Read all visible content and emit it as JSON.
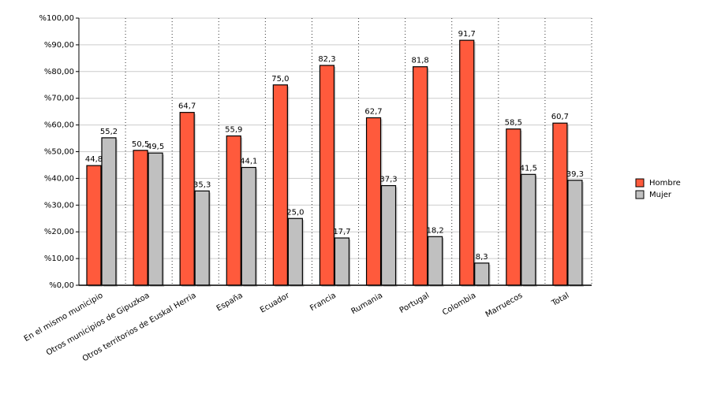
{
  "chart_data": {
    "type": "bar",
    "categories": [
      "En el mismo municipio",
      "Otros municipios de Gipuzkoa",
      "Otros territorios de Euskal Herria",
      "España",
      "Ecuador",
      "Francia",
      "Rumania",
      "Portugal",
      "Colombia",
      "Marruecos",
      "Total"
    ],
    "series": [
      {
        "name": "Hombre",
        "color": "#ff5a3c",
        "values": [
          44.8,
          50.5,
          64.7,
          55.9,
          75.0,
          82.3,
          62.7,
          81.8,
          91.7,
          58.5,
          60.7
        ],
        "value_labels": [
          "44,8",
          "50,5",
          "64,7",
          "55,9",
          "75,0",
          "82,3",
          "62,7",
          "81,8",
          "91,7",
          "58,5",
          "60,7"
        ]
      },
      {
        "name": "Mujer",
        "color": "#c0c0c0",
        "values": [
          55.2,
          49.5,
          35.3,
          44.1,
          25.0,
          17.7,
          37.3,
          18.2,
          8.3,
          41.5,
          39.3
        ],
        "value_labels": [
          "55,2",
          "49,5",
          "35,3",
          "44,1",
          "25,0",
          "17,7",
          "37,3",
          "18,2",
          "8,3",
          "41,5",
          "39,3"
        ]
      }
    ],
    "ylim": [
      0,
      100
    ],
    "yticks": [
      {
        "value": 0,
        "label": "%0,00"
      },
      {
        "value": 10,
        "label": "%10,00"
      },
      {
        "value": 20,
        "label": "%20,00"
      },
      {
        "value": 30,
        "label": "%30,00"
      },
      {
        "value": 40,
        "label": "%40,00"
      },
      {
        "value": 50,
        "label": "%50,00"
      },
      {
        "value": 60,
        "label": "%60,00"
      },
      {
        "value": 70,
        "label": "%70,00"
      },
      {
        "value": 80,
        "label": "%80,00"
      },
      {
        "value": 90,
        "label": "%90,00"
      },
      {
        "value": 100,
        "label": "%100,00"
      }
    ],
    "grid": true,
    "legend": "right"
  }
}
